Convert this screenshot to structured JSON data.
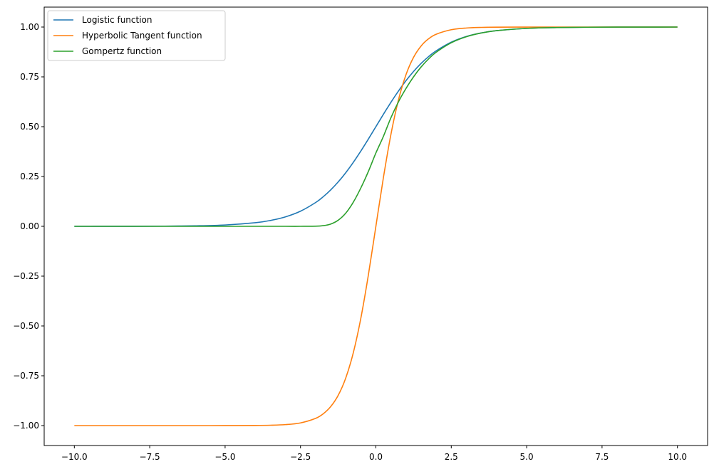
{
  "chart_data": {
    "type": "line",
    "title": "",
    "xlabel": "",
    "ylabel": "",
    "xlim": [
      -11.0,
      11.0
    ],
    "ylim": [
      -1.1,
      1.1
    ],
    "xticks": [
      -10.0,
      -7.5,
      -5.0,
      -2.5,
      0.0,
      2.5,
      5.0,
      7.5,
      10.0
    ],
    "xtick_labels": [
      "−10.0",
      "−7.5",
      "−5.0",
      "−2.5",
      "0.0",
      "2.5",
      "5.0",
      "7.5",
      "10.0"
    ],
    "yticks": [
      1.0,
      0.75,
      0.5,
      0.25,
      0.0,
      -0.25,
      -0.5,
      -0.75,
      -1.0
    ],
    "ytick_labels": [
      "1.00",
      "0.75",
      "0.50",
      "0.25",
      "0.00",
      "−0.25",
      "−0.50",
      "−0.75",
      "−1.00"
    ],
    "grid": false,
    "legend_position": "top-left",
    "x": [
      -10,
      -9,
      -8,
      -7,
      -6,
      -5,
      -4,
      -3.5,
      -3,
      -2.5,
      -2,
      -1.75,
      -1.5,
      -1.25,
      -1,
      -0.75,
      -0.5,
      -0.25,
      0,
      0.25,
      0.5,
      0.75,
      1,
      1.25,
      1.5,
      1.75,
      2,
      2.5,
      3,
      3.5,
      4,
      5,
      6,
      7,
      8,
      9,
      10
    ],
    "series": [
      {
        "name": "Logistic function",
        "color": "#1f77b4",
        "values": [
          0.0,
          0.0001,
          0.0003,
          0.0009,
          0.0025,
          0.0067,
          0.018,
          0.0293,
          0.0474,
          0.0759,
          0.1192,
          0.148,
          0.1824,
          0.2227,
          0.2689,
          0.3208,
          0.3775,
          0.4378,
          0.5,
          0.5622,
          0.6225,
          0.6792,
          0.7311,
          0.7773,
          0.8176,
          0.852,
          0.8808,
          0.9241,
          0.9526,
          0.9707,
          0.982,
          0.9933,
          0.9975,
          0.9991,
          0.9997,
          0.9999,
          1.0
        ]
      },
      {
        "name": "Hyperbolic Tangent function",
        "color": "#ff7f0e",
        "values": [
          -1.0,
          -1.0,
          -1.0,
          -1.0,
          -1.0,
          -0.9999,
          -0.9993,
          -0.9982,
          -0.9951,
          -0.9866,
          -0.964,
          -0.9414,
          -0.9051,
          -0.8483,
          -0.7616,
          -0.6351,
          -0.4621,
          -0.2449,
          0.0,
          0.2449,
          0.4621,
          0.6351,
          0.7616,
          0.8483,
          0.9051,
          0.9414,
          0.964,
          0.9866,
          0.9951,
          0.9982,
          0.9993,
          0.9999,
          1.0,
          1.0,
          1.0,
          1.0,
          1.0
        ]
      },
      {
        "name": "Gompertz function",
        "color": "#2ca02c",
        "values": [
          0.0,
          0.0,
          0.0,
          0.0,
          0.0,
          0.0,
          0.0,
          0.0,
          0.0,
          0.0,
          0.0006,
          0.0032,
          0.0113,
          0.0306,
          0.066,
          0.1208,
          0.1922,
          0.275,
          0.3679,
          0.4516,
          0.5454,
          0.6251,
          0.6922,
          0.7505,
          0.7998,
          0.8405,
          0.8736,
          0.9212,
          0.9514,
          0.9702,
          0.9819,
          0.9933,
          0.9975,
          0.9991,
          0.9997,
          0.9999,
          1.0
        ]
      }
    ]
  }
}
